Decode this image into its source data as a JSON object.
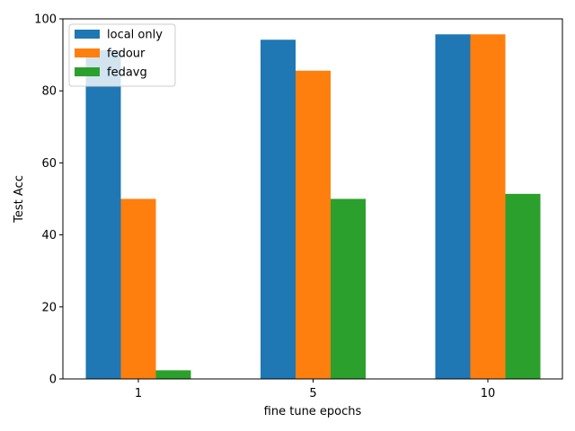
{
  "chart_data": {
    "type": "bar",
    "xlabel": "fine tune epochs",
    "ylabel": "Test Acc",
    "categories": [
      "1",
      "5",
      "10"
    ],
    "ylim": [
      0,
      100
    ],
    "yticks": [
      0,
      20,
      40,
      60,
      80,
      100
    ],
    "series": [
      {
        "name": "local only",
        "color": "#1f77b4",
        "values": [
          91.3,
          94.2,
          95.7
        ]
      },
      {
        "name": "fedour",
        "color": "#ff7f0e",
        "values": [
          50.0,
          85.6,
          95.7
        ]
      },
      {
        "name": "fedavg",
        "color": "#2ca02c",
        "values": [
          2.4,
          50.0,
          51.4
        ]
      }
    ],
    "legend": {
      "position": "top-left"
    },
    "grid": false
  }
}
